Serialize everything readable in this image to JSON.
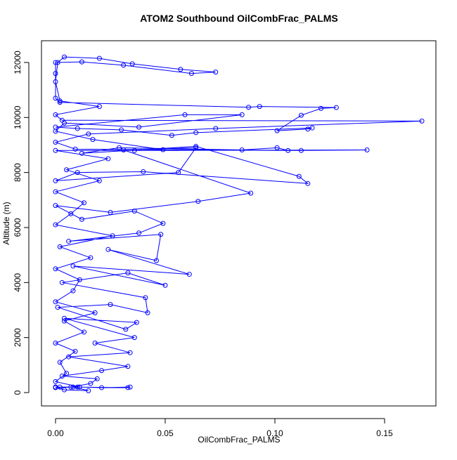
{
  "chart_data": {
    "type": "line",
    "title": "ATOM2 Southbound OilCombFrac_PALMS",
    "x_label": "OilCombFrac_PALMS",
    "y_label": "Altitude (m)",
    "color": "#0000ff",
    "markers": true,
    "xlim": [
      -0.0064,
      0.1734
    ],
    "ylim": [
      -485,
      12790
    ],
    "xticks": [
      {
        "value": 0,
        "label": "0.00"
      },
      {
        "value": 0.05,
        "label": "0.05"
      },
      {
        "value": 0.1,
        "label": "0.10"
      },
      {
        "value": 0.15,
        "label": "0.15"
      }
    ],
    "yticks": [
      0,
      2000,
      4000,
      6000,
      8000,
      10000,
      12000
    ],
    "x": [
      0,
      0.002,
      0.01,
      0.033,
      0.034,
      0.021,
      0.011,
      0,
      0.005,
      0.002,
      0.009,
      0,
      0.013,
      0.004,
      0.018,
      0,
      0.008,
      0.011,
      0,
      0.016,
      0.002,
      0.026,
      0,
      0.007,
      0.013,
      0,
      0.02,
      0.005,
      0.024,
      0,
      0.036,
      0.142,
      0.112,
      0.009,
      0,
      0.015,
      0.073,
      0.167,
      0.003,
      0,
      0.02,
      0.002,
      0,
      0.001,
      0.004,
      0.02,
      0.035,
      0.057,
      0.073,
      0.062,
      0.031,
      0.012,
      0,
      0,
      0,
      0.002,
      0.088,
      0.093,
      0.128,
      0.121,
      0.112,
      0.101,
      0.115,
      0.117,
      0.064,
      0.053,
      0.03,
      0.01,
      0,
      0.059,
      0.085,
      0.038,
      0.004,
      0,
      0.017,
      0.049,
      0.106,
      0.101,
      0.085,
      0.029,
      0.012,
      0.064,
      0.111,
      0.115,
      0.04,
      0.01,
      0,
      0.056,
      0.064,
      0.031,
      0.089,
      0.065,
      0.025,
      0,
      0.012,
      0.036,
      0.049,
      0.038,
      0.006,
      0.048,
      0.046,
      0.024,
      0.061,
      0.008,
      0.05,
      0.033,
      0.003,
      0.041,
      0.042,
      0.025,
      0.001,
      0.032,
      0.037,
      0.004,
      0.036,
      0.018,
      0.034,
      0.006,
      0.033,
      0.021,
      0.003,
      0.019,
      0.016,
      0.007,
      0,
      0.004,
      0.015,
      0.008,
      0
    ],
    "values": [
      200,
      200,
      200,
      180,
      200,
      180,
      200,
      400,
      700,
      1100,
      1500,
      1800,
      2200,
      2600,
      2900,
      3300,
      3700,
      4100,
      4500,
      4900,
      5300,
      5700,
      6100,
      6500,
      6900,
      7300,
      7700,
      8100,
      8500,
      8800,
      8800,
      8820,
      8800,
      8850,
      9100,
      9400,
      9600,
      9870,
      9900,
      10100,
      10400,
      10600,
      11300,
      12000,
      12200,
      12150,
      11950,
      11750,
      11650,
      11600,
      11900,
      12020,
      12000,
      11600,
      10700,
      10550,
      10370,
      10400,
      10360,
      10330,
      10080,
      9520,
      9580,
      9620,
      9450,
      9350,
      9550,
      9600,
      9650,
      10100,
      10100,
      9650,
      9800,
      9500,
      9200,
      8830,
      8800,
      8900,
      8820,
      8900,
      8700,
      8950,
      7860,
      7600,
      8030,
      8000,
      7700,
      8000,
      8900,
      8820,
      7250,
      6950,
      6550,
      6800,
      6300,
      6600,
      6150,
      5800,
      5500,
      5750,
      4800,
      5200,
      4300,
      4600,
      3900,
      4350,
      4000,
      3450,
      2900,
      3200,
      3100,
      2300,
      2550,
      2700,
      2000,
      1800,
      1450,
      1300,
      950,
      800,
      600,
      500,
      330,
      200,
      200,
      100,
      70,
      200,
      180
    ]
  }
}
